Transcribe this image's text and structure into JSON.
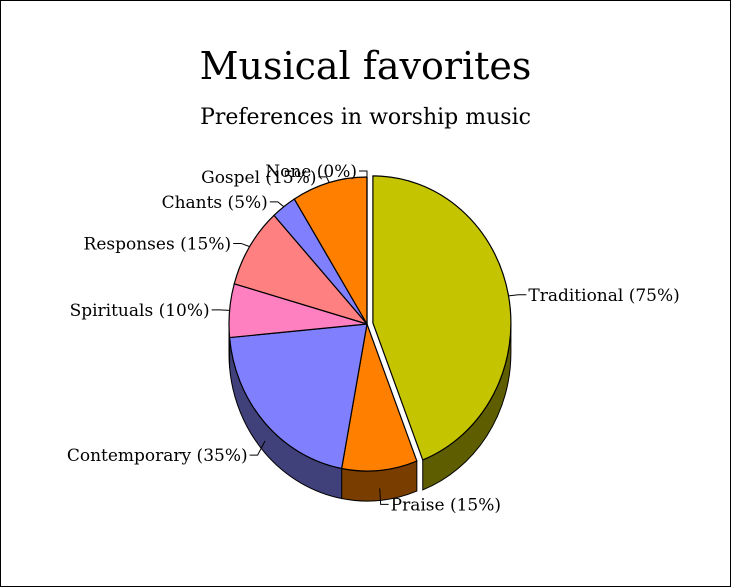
{
  "chart_data": {
    "type": "pie",
    "title": "Musical favorites",
    "subtitle": "Preferences in worship music",
    "style": "3d",
    "slices": [
      {
        "label": "Traditional (75%)",
        "value": 75,
        "color": "#c4c400",
        "side_color": "#5e5e00",
        "exploded": true
      },
      {
        "label": "Praise (15%)",
        "value": 15,
        "color": "#ff8000",
        "side_color": "#7a3d00",
        "exploded": false
      },
      {
        "label": "Contemporary (35%)",
        "value": 35,
        "color": "#8080ff",
        "side_color": "#40407a",
        "exploded": false
      },
      {
        "label": "Spirituals (10%)",
        "value": 10,
        "color": "#ff80c0",
        "side_color": "#7a3d5c",
        "exploded": false
      },
      {
        "label": "Responses (15%)",
        "value": 15,
        "color": "#ff8080",
        "side_color": "#7a3d3d",
        "exploded": false
      },
      {
        "label": "Chants (5%)",
        "value": 5,
        "color": "#8080ff",
        "side_color": "#40407a",
        "exploded": false
      },
      {
        "label": "Gospel (15%)",
        "value": 15,
        "color": "#ff8000",
        "side_color": "#7a3d00",
        "exploded": false
      },
      {
        "label": "None (0%)",
        "value": 0,
        "color": "#ff8000",
        "side_color": "#7a3d00",
        "exploded": false
      }
    ]
  }
}
